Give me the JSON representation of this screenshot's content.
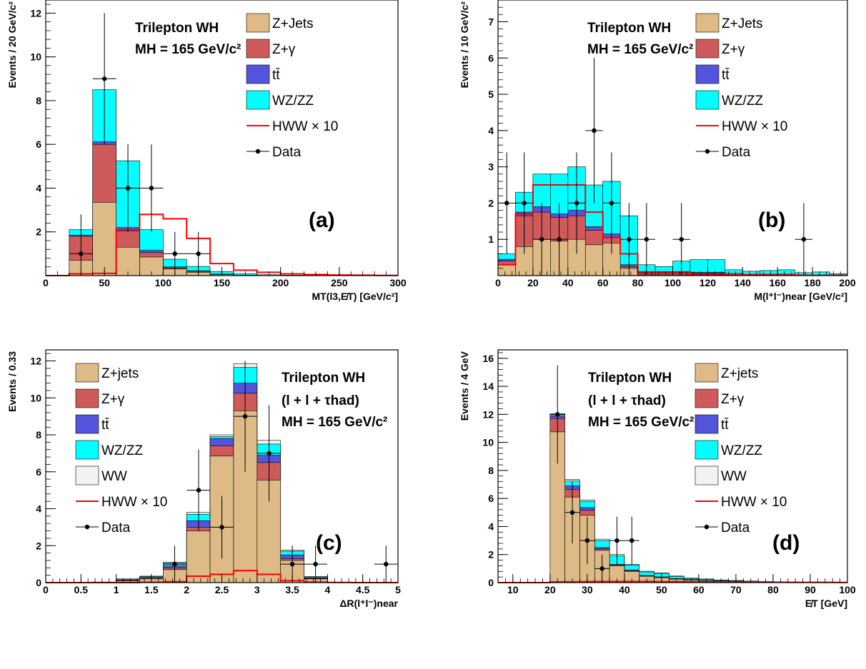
{
  "colors": {
    "zjets": "#deba87",
    "zgamma": "#cf5a5a",
    "ttbar": "#5454dc",
    "wzzz": "#00ffff",
    "ww": "#f2f2f2",
    "hww": "#ff0000",
    "data": "#000000"
  },
  "chart_data": [
    {
      "type": "bar",
      "stacked": true,
      "panel_label": "(a)",
      "title": "Trilepton WH",
      "subtitle": "",
      "mass_label": "M_H = 165 GeV/c²",
      "ylabel": "Events / 20 GeV/c²",
      "xlabel": "M_T(l_3,E̸_T) [GeV/c²]",
      "xlim": [
        0,
        300
      ],
      "ylim": [
        0,
        12.6
      ],
      "xticks": [
        0,
        50,
        100,
        150,
        200,
        250,
        300
      ],
      "xtick_labels": [
        "0",
        "50",
        "100",
        "150",
        "200",
        "250",
        "300"
      ],
      "yticks": [
        2,
        4,
        6,
        8,
        10,
        12
      ],
      "ytick_labels": [
        "2",
        "4",
        "6",
        "8",
        "10",
        "12"
      ],
      "bin_edges": [
        0,
        20,
        40,
        60,
        80,
        100,
        120,
        140,
        160,
        180,
        200,
        220,
        240,
        260,
        280,
        300
      ],
      "legend": [
        "Z+Jets",
        "Z+γ",
        "tt̄",
        "WZ/ZZ",
        "HWW × 10",
        "Data"
      ],
      "series": [
        {
          "name": "Z+Jets",
          "key": "zjets",
          "values": [
            0,
            0.7,
            3.35,
            1.3,
            0.85,
            0.3,
            0.15,
            0.05,
            0.02,
            0,
            0,
            0,
            0,
            0,
            0
          ]
        },
        {
          "name": "Z+γ",
          "key": "zgamma",
          "values": [
            0,
            1.1,
            2.65,
            0.75,
            0.2,
            0.05,
            0.05,
            0,
            0,
            0,
            0,
            0,
            0,
            0,
            0
          ]
        },
        {
          "name": "tt̄",
          "key": "ttbar",
          "values": [
            0,
            0.05,
            0.12,
            0.15,
            0.1,
            0.05,
            0.02,
            0.02,
            0,
            0,
            0,
            0,
            0,
            0,
            0
          ]
        },
        {
          "name": "WZ/ZZ",
          "key": "wzzz",
          "values": [
            0,
            0.25,
            2.38,
            3.05,
            0.95,
            0.35,
            0.2,
            0.12,
            0.06,
            0.04,
            0.02,
            0.01,
            0.01,
            0,
            0
          ]
        }
      ],
      "hww": {
        "name": "HWW × 10",
        "values": [
          0,
          0.08,
          0.1,
          2.1,
          2.8,
          2.6,
          1.7,
          0.55,
          0.25,
          0.15,
          0.08,
          0.05,
          0.03,
          0.02,
          0.01
        ]
      },
      "data": {
        "name": "Data",
        "x": [
          30,
          50,
          70,
          90,
          110,
          130
        ],
        "y": [
          1,
          9,
          4,
          4,
          1,
          1
        ],
        "err": [
          1.8,
          3.0,
          2.0,
          2.0,
          1.0,
          1.0
        ]
      }
    },
    {
      "type": "bar",
      "stacked": true,
      "panel_label": "(b)",
      "title": "Trilepton WH",
      "subtitle": "",
      "mass_label": "M_H = 165 GeV/c²",
      "ylabel": "Events / 10 GeV/c²",
      "xlabel": "M(l⁺l⁻)_near [GeV/c²]",
      "xlim": [
        0,
        200
      ],
      "ylim": [
        0,
        7.6
      ],
      "xticks": [
        0,
        20,
        40,
        60,
        80,
        100,
        120,
        140,
        160,
        180,
        200
      ],
      "xtick_labels": [
        "0",
        "20",
        "40",
        "60",
        "80",
        "100",
        "120",
        "140",
        "160",
        "180",
        "200"
      ],
      "yticks": [
        1,
        2,
        3,
        4,
        5,
        6,
        7
      ],
      "ytick_labels": [
        "1",
        "2",
        "3",
        "4",
        "5",
        "6",
        "7"
      ],
      "bin_edges": [
        0,
        10,
        20,
        30,
        40,
        50,
        60,
        70,
        80,
        90,
        100,
        110,
        120,
        130,
        140,
        150,
        160,
        170,
        180,
        190,
        200
      ],
      "legend": [
        "Z+Jets",
        "Z+γ",
        "tt̄",
        "WZ/ZZ",
        "HWW × 10",
        "Data"
      ],
      "series": [
        {
          "name": "Z+Jets",
          "key": "zjets",
          "values": [
            0.3,
            0.8,
            1.0,
            0.95,
            1.0,
            0.85,
            0.9,
            0.2,
            0.02,
            0.02,
            0.02,
            0.02,
            0.02,
            0.01,
            0.01,
            0.01,
            0.01,
            0,
            0,
            0
          ]
        },
        {
          "name": "Z+γ",
          "key": "zgamma",
          "values": [
            0.1,
            0.85,
            0.75,
            0.65,
            0.65,
            0.4,
            0.15,
            0.05,
            0.05,
            0.05,
            0.05,
            0.05,
            0.05,
            0.03,
            0.02,
            0.02,
            0.02,
            0.01,
            0.01,
            0
          ]
        },
        {
          "name": "tt̄",
          "key": "ttbar",
          "values": [
            0.05,
            0.1,
            0.15,
            0.1,
            0.15,
            0.1,
            0.1,
            0.05,
            0.03,
            0.03,
            0.03,
            0.02,
            0.02,
            0.02,
            0.01,
            0.01,
            0.01,
            0.01,
            0.01,
            0
          ]
        },
        {
          "name": "WZ/ZZ",
          "key": "wzzz",
          "values": [
            0.15,
            0.55,
            0.9,
            1.1,
            1.2,
            1.15,
            1.45,
            1.35,
            0.2,
            0.15,
            0.3,
            0.35,
            0.35,
            0.1,
            0.08,
            0.1,
            0.12,
            0.06,
            0.08,
            0.05
          ]
        }
      ],
      "hww": {
        "name": "HWW × 10",
        "values": [
          0.3,
          1.7,
          2.5,
          2.5,
          2.5,
          1.75,
          1.05,
          0.6,
          0.1,
          0.1,
          0.1,
          0.05,
          0.05,
          0.05,
          0.03,
          0.02,
          0.02,
          0.01,
          0.01,
          0.01
        ]
      },
      "data": {
        "name": "Data",
        "x": [
          5,
          15,
          25,
          35,
          45,
          55,
          65,
          75,
          85,
          105,
          175
        ],
        "y": [
          2,
          2,
          1,
          1,
          2,
          4,
          2,
          1,
          1,
          1,
          1
        ],
        "err": [
          1.4,
          1.4,
          1.0,
          1.0,
          1.4,
          2.0,
          1.4,
          1.0,
          1.0,
          1.0,
          1.0
        ]
      }
    },
    {
      "type": "bar",
      "stacked": true,
      "panel_label": "(c)",
      "title": "Trilepton WH",
      "subtitle": "(l + l + τ_had)",
      "mass_label": "M_H = 165 GeV/c²",
      "ylabel": "Events / 0.33",
      "xlabel": "ΔR(l⁺l⁻)_near",
      "xlim": [
        0,
        5
      ],
      "ylim": [
        0,
        12.6
      ],
      "xticks": [
        0,
        0.5,
        1,
        1.5,
        2,
        2.5,
        3,
        3.5,
        4,
        4.5,
        5
      ],
      "xtick_labels": [
        "0",
        "0.5",
        "1",
        "1.5",
        "2",
        "2.5",
        "3",
        "3.5",
        "4",
        "4.5",
        "5"
      ],
      "yticks": [
        0,
        2,
        4,
        6,
        8,
        10,
        12
      ],
      "ytick_labels": [
        "0",
        "2",
        "4",
        "6",
        "8",
        "10",
        "12"
      ],
      "bin_edges": [
        0,
        0.333,
        0.667,
        1.0,
        1.333,
        1.667,
        2.0,
        2.333,
        2.667,
        3.0,
        3.333,
        3.667,
        4.0,
        4.333,
        4.667,
        5.0
      ],
      "legend": [
        "Z+jets",
        "Z+γ",
        "tt̄",
        "WZ/ZZ",
        "WW",
        "HWW × 10",
        "Data"
      ],
      "series": [
        {
          "name": "Z+jets",
          "key": "zjets",
          "values": [
            0,
            0,
            0.02,
            0.1,
            0.2,
            0.7,
            2.8,
            6.85,
            9.3,
            5.55,
            1.2,
            0.2,
            0.02,
            0,
            0
          ]
        },
        {
          "name": "Z+γ",
          "key": "zgamma",
          "values": [
            0,
            0,
            0,
            0.02,
            0.05,
            0.1,
            0.2,
            0.55,
            0.95,
            0.95,
            0.1,
            0.03,
            0,
            0,
            0
          ]
        },
        {
          "name": "tt̄",
          "key": "ttbar",
          "values": [
            0,
            0,
            0,
            0.02,
            0.03,
            0.1,
            0.35,
            0.4,
            0.55,
            0.4,
            0.2,
            0.03,
            0,
            0,
            0
          ]
        },
        {
          "name": "WZ/ZZ",
          "key": "wzzz",
          "values": [
            0,
            0,
            0.01,
            0.05,
            0.05,
            0.15,
            0.35,
            0.1,
            0.85,
            0.6,
            0.2,
            0.05,
            0,
            0,
            0
          ]
        },
        {
          "name": "WW",
          "key": "ww",
          "values": [
            0,
            0,
            0,
            0.01,
            0.02,
            0.05,
            0.1,
            0.1,
            0.2,
            0.2,
            0.05,
            0.02,
            0,
            0,
            0
          ]
        }
      ],
      "hww": {
        "name": "HWW × 10",
        "values": [
          0,
          0,
          0,
          0,
          0.02,
          0.05,
          0.35,
          0.45,
          0.65,
          0.45,
          0.1,
          0.03,
          0.01,
          0,
          0
        ]
      },
      "data": {
        "name": "Data",
        "x": [
          1.83,
          2.17,
          2.5,
          2.83,
          3.17,
          3.5,
          3.83,
          4.83
        ],
        "y": [
          1,
          5,
          3,
          9,
          7,
          1,
          1,
          1
        ],
        "err": [
          1.0,
          2.2,
          1.7,
          3.0,
          2.6,
          1.0,
          1.0,
          1.0
        ]
      }
    },
    {
      "type": "bar",
      "stacked": true,
      "panel_label": "(d)",
      "title": "Trilepton WH",
      "subtitle": "(l + l + τ_had)",
      "mass_label": "M_H = 165 GeV/c²",
      "ylabel": "Events / 4 GeV",
      "xlabel": "E̸_T [GeV]",
      "xlim": [
        6,
        100
      ],
      "ylim": [
        0,
        16.6
      ],
      "xticks": [
        10,
        20,
        30,
        40,
        50,
        60,
        70,
        80,
        90,
        100
      ],
      "xtick_labels": [
        "10",
        "20",
        "30",
        "40",
        "50",
        "60",
        "70",
        "80",
        "90",
        "100"
      ],
      "yticks": [
        0,
        2,
        4,
        6,
        8,
        10,
        12,
        14,
        16
      ],
      "ytick_labels": [
        "0",
        "2",
        "4",
        "6",
        "8",
        "10",
        "12",
        "14",
        "16"
      ],
      "bin_edges": [
        6,
        10,
        14,
        18,
        20,
        24,
        28,
        32,
        36,
        40,
        44,
        48,
        52,
        56,
        60,
        64,
        68,
        72,
        76,
        80,
        84,
        88,
        92,
        96,
        100
      ],
      "legend": [
        "Z+jets",
        "Z+γ",
        "tt̄",
        "WZ/ZZ",
        "WW",
        "HWW × 10",
        "Data"
      ],
      "series": [
        {
          "name": "Z+jets",
          "key": "zjets",
          "values": [
            0,
            0,
            0,
            0,
            10.75,
            6.1,
            4.8,
            2.3,
            1.2,
            0.8,
            0.45,
            0.35,
            0.25,
            0.18,
            0.14,
            0.1,
            0.08,
            0.06,
            0.05,
            0.04,
            0.03,
            0.02,
            0.02,
            0.01
          ]
        },
        {
          "name": "Z+γ",
          "key": "zgamma",
          "values": [
            0,
            0,
            0,
            0,
            0.95,
            0.55,
            0.35,
            0.1,
            0.05,
            0.05,
            0.03,
            0.03,
            0.02,
            0.02,
            0.01,
            0.01,
            0.01,
            0,
            0,
            0,
            0,
            0,
            0,
            0
          ]
        },
        {
          "name": "tt̄",
          "key": "ttbar",
          "values": [
            0,
            0,
            0,
            0,
            0.2,
            0.25,
            0.2,
            0.1,
            0.05,
            0.05,
            0.03,
            0.03,
            0.02,
            0.02,
            0.01,
            0.01,
            0.01,
            0.01,
            0,
            0,
            0,
            0,
            0,
            0
          ]
        },
        {
          "name": "WZ/ZZ",
          "key": "wzzz",
          "values": [
            0,
            0,
            0,
            0,
            0.1,
            0.35,
            0.45,
            0.5,
            0.6,
            0.35,
            0.25,
            0.25,
            0.15,
            0.08,
            0.08,
            0.05,
            0.04,
            0.03,
            0.02,
            0.02,
            0.01,
            0.01,
            0.01,
            0.01
          ]
        },
        {
          "name": "WW",
          "key": "ww",
          "values": [
            0,
            0,
            0,
            0,
            0.05,
            0.1,
            0.1,
            0.1,
            0.1,
            0.05,
            0.05,
            0.03,
            0.03,
            0.02,
            0.02,
            0.01,
            0.01,
            0.01,
            0.01,
            0,
            0,
            0,
            0,
            0
          ]
        }
      ],
      "hww": {
        "name": "HWW × 10",
        "values": [
          0,
          0,
          0,
          0,
          0.05,
          0.06,
          0.07,
          0.08,
          0.08,
          0.08,
          0.08,
          0.07,
          0.07,
          0.06,
          0.05,
          0.05,
          0.04,
          0.04,
          0.03,
          0.03,
          0.02,
          0.02,
          0.02,
          0.01
        ]
      },
      "data": {
        "name": "Data",
        "x": [
          22,
          26,
          30,
          34,
          38,
          42
        ],
        "y": [
          12,
          5,
          3,
          1,
          3,
          3
        ],
        "err": [
          3.5,
          2.2,
          1.7,
          1.0,
          1.7,
          1.7
        ]
      }
    }
  ]
}
